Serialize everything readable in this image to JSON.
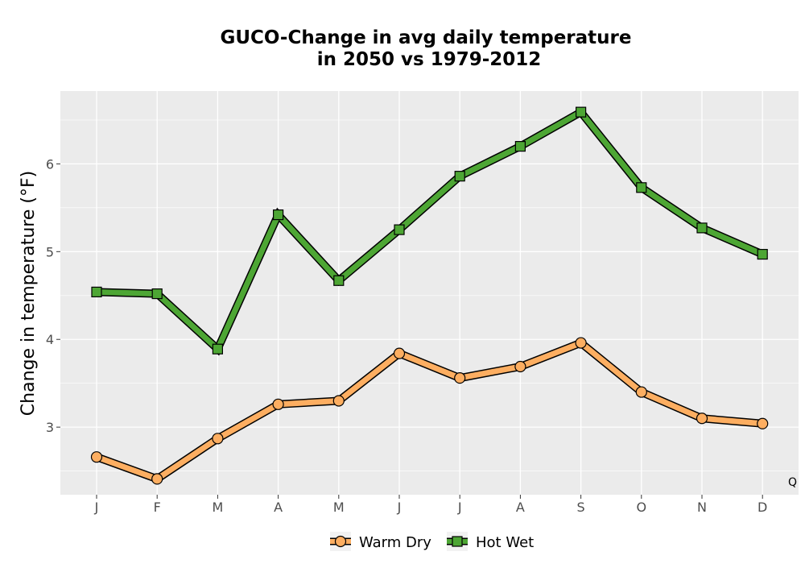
{
  "chart_data": {
    "type": "line",
    "title_line1": "GUCO-Change in avg daily temperature",
    "title_line2": "in 2050 vs 1979-2012",
    "xlabel": "",
    "ylabel": "Change in temperature (°F)",
    "categories": [
      "J",
      "F",
      "M",
      "A",
      "M",
      "J",
      "J",
      "A",
      "S",
      "O",
      "N",
      "D"
    ],
    "ylim": [
      2.23,
      6.83
    ],
    "yticks": [
      3,
      4,
      5,
      6
    ],
    "grid": true,
    "legend_position": "bottom",
    "corner_mark": "Q",
    "series": [
      {
        "name": "Warm Dry",
        "marker": "circle",
        "color": "#fdae61",
        "values": [
          2.66,
          2.41,
          2.87,
          3.26,
          3.3,
          3.84,
          3.56,
          3.69,
          3.96,
          3.4,
          3.1,
          3.04
        ]
      },
      {
        "name": "Hot Wet",
        "marker": "square",
        "color": "#4da634",
        "values": [
          4.54,
          4.52,
          3.89,
          5.42,
          4.67,
          5.25,
          5.86,
          6.2,
          6.59,
          5.73,
          5.27,
          4.97
        ]
      }
    ]
  }
}
